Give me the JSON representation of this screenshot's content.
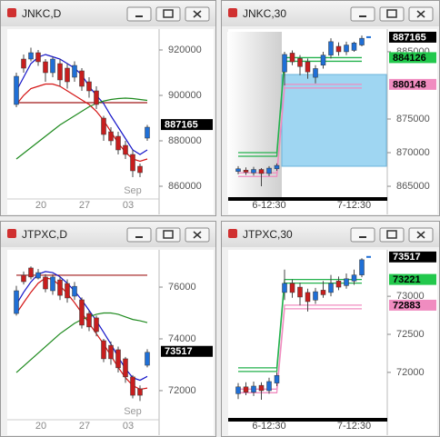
{
  "chart_data": [
    {
      "type": "candlestick",
      "title": "JNKC,D",
      "categories": [
        null,
        null,
        null,
        "20",
        null,
        null,
        null,
        null,
        null,
        "27",
        null,
        null,
        null,
        null,
        null,
        "03",
        null,
        null,
        null
      ],
      "annotation": "Sep",
      "open": [
        896000,
        916000,
        916000,
        918800,
        914800,
        910000,
        914000,
        912000,
        908000,
        910800,
        906000,
        902000,
        890000,
        884000,
        882000,
        878000,
        874000,
        868800,
        881200
      ],
      "high": [
        910000,
        918000,
        921000,
        920000,
        916000,
        917000,
        916000,
        914000,
        915000,
        912000,
        908000,
        904000,
        891000,
        886000,
        884000,
        880000,
        876000,
        870000,
        887000
      ],
      "low": [
        894800,
        910000,
        915000,
        913000,
        906000,
        908000,
        904000,
        903000,
        906000,
        902000,
        899000,
        894000,
        880000,
        878000,
        874000,
        872000,
        864000,
        864000,
        880000
      ],
      "close": [
        908400,
        912000,
        918800,
        914800,
        910000,
        916000,
        906800,
        906000,
        913200,
        904000,
        902000,
        896000,
        882800,
        880000,
        876000,
        874000,
        866800,
        866000,
        886000
      ],
      "up_color": "#1f6fd6",
      "down_color": "#c81e1e",
      "series": [
        {
          "color": "#1414c8",
          "values": [
            902000,
            908000,
            914000,
            916800,
            918000,
            917000,
            916000,
            914000,
            912000,
            909000,
            904000,
            900000,
            896400,
            891000,
            886000,
            881000,
            876000,
            874000,
            876000
          ]
        },
        {
          "color": "#d41414",
          "values": [
            896000,
            900000,
            903000,
            904000,
            905000,
            905000,
            904000,
            902000,
            900000,
            898000,
            896000,
            893000,
            889000,
            884000,
            879000,
            875000,
            872000,
            871000,
            872000
          ]
        },
        {
          "color": "#1e8a1e",
          "values": [
            872000,
            874500,
            877000,
            879500,
            882000,
            884500,
            887000,
            889000,
            891000,
            893000,
            895000,
            896500,
            897500,
            898200,
            898600,
            898800,
            898600,
            898200,
            897800
          ]
        }
      ],
      "hlines": [
        {
          "value": 896800,
          "color": "#a01818"
        }
      ],
      "price_labels": [
        {
          "value": 887165,
          "color": "#000000",
          "text_color": "#ffffff"
        }
      ],
      "ylim": [
        854800,
        929200
      ],
      "yticks": [
        860000,
        880000,
        900000,
        920000
      ]
    },
    {
      "type": "candlestick",
      "title": "JNKC,30",
      "categories": [
        null,
        null,
        null,
        null,
        "6-12:30",
        null,
        null,
        null,
        null,
        null,
        null,
        null,
        null,
        null,
        null,
        "7-12:30",
        null
      ],
      "open": [
        867200,
        867400,
        867000,
        867500,
        866900,
        867600,
        882000,
        884800,
        884000,
        883500,
        881200,
        883000,
        884500,
        885800,
        885000,
        885200,
        886000
      ],
      "high": [
        868000,
        867800,
        867900,
        867700,
        868000,
        868400,
        885000,
        885200,
        884500,
        884000,
        883000,
        885000,
        887000,
        886400,
        886500,
        886500,
        887400
      ],
      "low": [
        866800,
        866700,
        866600,
        865000,
        866500,
        867300,
        880000,
        883000,
        881500,
        881000,
        880300,
        882500,
        884000,
        884400,
        884500,
        885000,
        885800
      ],
      "close": [
        867600,
        867100,
        867500,
        866900,
        867700,
        868100,
        884600,
        883500,
        882800,
        882000,
        882500,
        884500,
        886500,
        885000,
        886000,
        886300,
        887000
      ],
      "up_color": "#1f6fd6",
      "down_color": "#c81e1e",
      "series": [
        {
          "color": "#22b14c",
          "values": [
            870000,
            870000,
            870000,
            870000,
            870000,
            870000,
            884126,
            884126,
            884126,
            884126,
            884126,
            884126,
            884126,
            884126,
            884126,
            884126,
            884126
          ]
        },
        {
          "color": "#f08cc0",
          "values": [
            867000,
            867000,
            867000,
            867000,
            867000,
            867000,
            880148,
            880148,
            880148,
            880148,
            880148,
            880148,
            880148,
            880148,
            880148,
            880148,
            880148
          ]
        }
      ],
      "last_tick": 887165,
      "price_labels": [
        {
          "value": 887165,
          "color": "#000000",
          "text_color": "#ffffff"
        },
        {
          "value": 884126,
          "color": "#22c84c",
          "text_color": "#000000"
        },
        {
          "value": 880148,
          "color": "#f08cc0",
          "text_color": "#000000"
        }
      ],
      "ylim": [
        863250,
        888370
      ],
      "yticks": [
        865000,
        870000,
        875000,
        885000
      ]
    },
    {
      "type": "candlestick",
      "title": "JTPXC,D",
      "categories": [
        null,
        null,
        null,
        "20",
        null,
        null,
        null,
        null,
        null,
        "27",
        null,
        null,
        null,
        null,
        null,
        "03",
        null,
        null,
        null
      ],
      "annotation": "Sep",
      "open": [
        74980,
        76460,
        76740,
        76350,
        76390,
        75860,
        76280,
        76140,
        75650,
        75510,
        74980,
        74810,
        73930,
        73750,
        73580,
        73230,
        72530,
        72070,
        72980
      ],
      "high": [
        76050,
        76600,
        76800,
        76700,
        76500,
        76500,
        76400,
        76300,
        76200,
        75600,
        75100,
        74900,
        74000,
        73900,
        73700,
        73300,
        72600,
        72200,
        73600
      ],
      "low": [
        74900,
        76100,
        76300,
        76300,
        75800,
        75700,
        75500,
        75400,
        75500,
        74400,
        74300,
        74100,
        73100,
        73000,
        72700,
        72300,
        71700,
        71600,
        72900
      ],
      "close": [
        75860,
        76210,
        76390,
        76560,
        75930,
        76390,
        75680,
        75580,
        76030,
        74530,
        74460,
        74280,
        73230,
        73230,
        72880,
        72530,
        71820,
        71820,
        73480
      ],
      "up_color": "#1f6fd6",
      "down_color": "#c81e1e",
      "series": [
        {
          "color": "#1414c8",
          "values": [
            75330,
            75800,
            76200,
            76500,
            76600,
            76560,
            76400,
            76150,
            75850,
            75500,
            75100,
            74700,
            74250,
            73800,
            73300,
            72850,
            72500,
            72400,
            72550
          ]
        },
        {
          "color": "#d41414",
          "values": [
            74980,
            75400,
            75800,
            76150,
            76350,
            76300,
            76050,
            75750,
            75400,
            75000,
            74600,
            74200,
            73800,
            73350,
            72900,
            72500,
            72200,
            72050,
            72100
          ]
        },
        {
          "color": "#1e8a1e",
          "values": [
            72700,
            72950,
            73200,
            73450,
            73700,
            73950,
            74200,
            74400,
            74600,
            74750,
            74850,
            74950,
            75000,
            75000,
            74950,
            74850,
            74750,
            74700,
            74630
          ]
        }
      ],
      "hlines": [
        {
          "value": 76460,
          "color": "#a01818"
        }
      ],
      "price_labels": [
        {
          "value": 73517,
          "color": "#000000",
          "text_color": "#ffffff"
        }
      ],
      "ylim": [
        70910,
        77440
      ],
      "yticks": [
        72000,
        74000,
        76000
      ]
    },
    {
      "type": "candlestick",
      "title": "JTPXC,30",
      "categories": [
        null,
        null,
        null,
        null,
        "6-12:30",
        null,
        null,
        null,
        null,
        null,
        null,
        null,
        null,
        null,
        null,
        "7-12:30",
        null
      ],
      "open": [
        71720,
        71810,
        71740,
        71830,
        71760,
        71860,
        73050,
        73170,
        73120,
        73050,
        72950,
        73080,
        73050,
        73200,
        73140,
        73200,
        73280
      ],
      "high": [
        71860,
        71870,
        71880,
        71870,
        71930,
        72000,
        73350,
        73220,
        73180,
        73100,
        73110,
        73200,
        73280,
        73260,
        73300,
        73350,
        73500
      ],
      "low": [
        71650,
        71700,
        71690,
        71640,
        71720,
        71820,
        72950,
        72980,
        72880,
        72800,
        72900,
        72980,
        73000,
        73080,
        73100,
        73150,
        73250
      ],
      "close": [
        71810,
        71740,
        71820,
        71760,
        71880,
        71960,
        73170,
        73050,
        72990,
        72930,
        73060,
        73020,
        73170,
        73120,
        73230,
        73280,
        73480
      ],
      "up_color": "#1f6fd6",
      "down_color": "#c81e1e",
      "series": [
        {
          "color": "#22b14c",
          "values": [
            72060,
            72060,
            72060,
            72060,
            72060,
            72060,
            73221,
            73221,
            73221,
            73221,
            73221,
            73221,
            73221,
            73221,
            73221,
            73221,
            73221
          ]
        },
        {
          "color": "#f08cc0",
          "values": [
            71780,
            71780,
            71780,
            71780,
            71780,
            71780,
            72883,
            72883,
            72883,
            72883,
            72883,
            72883,
            72883,
            72883,
            72883,
            72883,
            72883
          ]
        }
      ],
      "last_tick": 73517,
      "price_labels": [
        {
          "value": 73517,
          "color": "#000000",
          "text_color": "#ffffff"
        },
        {
          "value": 73221,
          "color": "#22c84c",
          "text_color": "#000000"
        },
        {
          "value": 72883,
          "color": "#f08cc0",
          "text_color": "#000000"
        }
      ],
      "ylim": [
        71390,
        73610
      ],
      "yticks": [
        72000,
        72500,
        73000
      ]
    }
  ]
}
